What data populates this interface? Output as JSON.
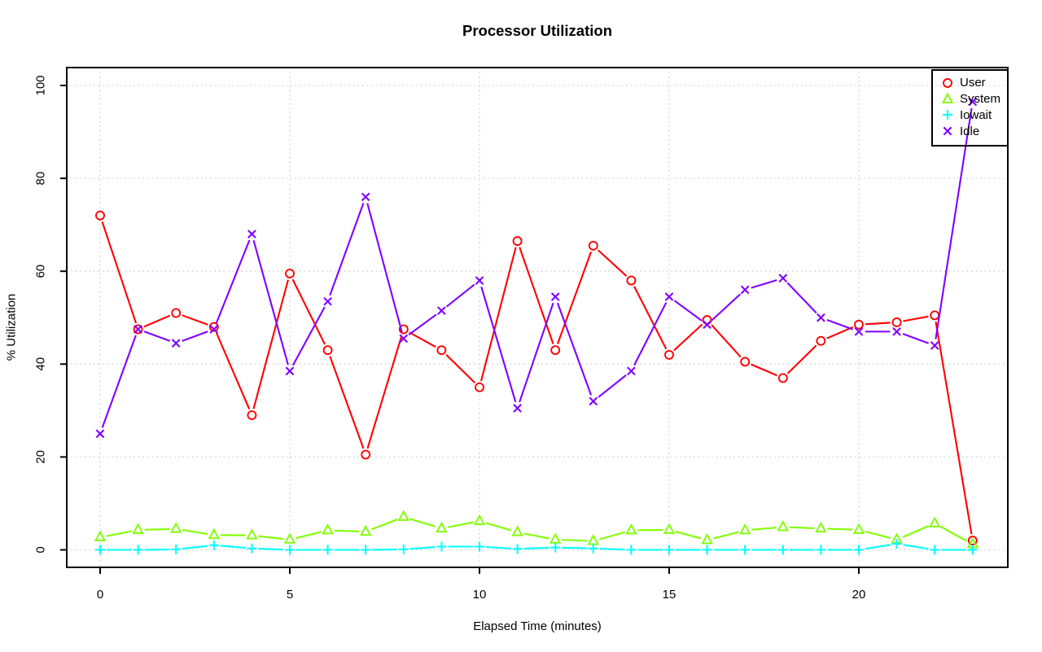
{
  "chart_data": {
    "type": "line",
    "title": "Processor Utilization",
    "xlabel": "Elapsed Time (minutes)",
    "ylabel": "% Utilization",
    "xlim": [
      0,
      23
    ],
    "ylim": [
      0,
      100
    ],
    "x_ticks": [
      0,
      5,
      10,
      15,
      20
    ],
    "y_ticks": [
      0,
      20,
      40,
      60,
      80,
      100
    ],
    "grid": "dotted",
    "legend_position": "top-right",
    "point_style": "lines-with-open-markers",
    "x": [
      0,
      1,
      2,
      3,
      4,
      5,
      6,
      7,
      8,
      9,
      10,
      11,
      12,
      13,
      14,
      15,
      16,
      17,
      18,
      19,
      20,
      21,
      22,
      23
    ],
    "series": [
      {
        "name": "User",
        "color": "#ff0000",
        "marker": "circle",
        "line_style": "solid",
        "values": [
          72,
          47.5,
          51,
          48,
          29,
          59.5,
          43,
          20.5,
          47.5,
          43,
          35,
          66.5,
          43,
          65.5,
          58,
          42,
          49.5,
          40.5,
          37,
          45,
          48.5,
          49,
          50.5,
          2
        ]
      },
      {
        "name": "System",
        "color": "#80ff00",
        "marker": "triangle",
        "line_style": "solid",
        "values": [
          2.7,
          4.3,
          4.5,
          3.2,
          3.1,
          2.2,
          4.2,
          3.9,
          7.1,
          4.6,
          6.2,
          3.8,
          2.2,
          1.9,
          4.2,
          4.3,
          2.1,
          4.2,
          4.9,
          4.6,
          4.3,
          2.2,
          5.7,
          1.2
        ]
      },
      {
        "name": "Iowait",
        "color": "#00ffff",
        "marker": "plus",
        "line_style": "solid",
        "values": [
          0,
          0,
          0.1,
          1,
          0.3,
          0,
          0,
          0,
          0.1,
          0.7,
          0.7,
          0.2,
          0.5,
          0.3,
          0,
          0,
          0,
          0,
          0,
          0,
          0,
          1.3,
          0,
          0
        ]
      },
      {
        "name": "Idle",
        "color": "#8000ff",
        "marker": "x",
        "line_style": "solid",
        "values": [
          25,
          47.5,
          44.5,
          47.5,
          68,
          38.5,
          53.5,
          76,
          45.5,
          51.5,
          58,
          30.5,
          54.5,
          32,
          38.5,
          54.5,
          48.5,
          56,
          58.5,
          50,
          47,
          47,
          44,
          96.5
        ]
      }
    ]
  },
  "colors": {
    "background": "#ffffff",
    "frame": "#000000",
    "gridline": "#cccccc",
    "tick": "#000000",
    "text": "#000000"
  }
}
